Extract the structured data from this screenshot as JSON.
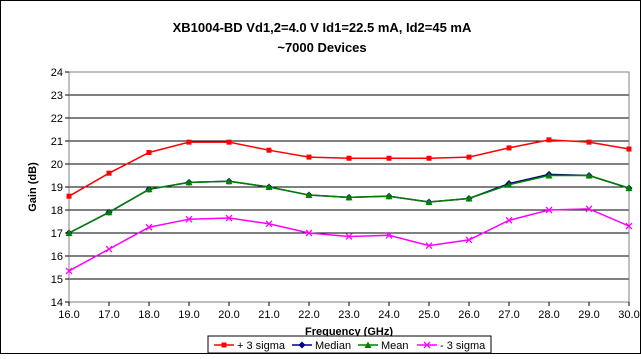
{
  "chart_data": {
    "type": "line",
    "title": "XB1004-BD Vd1,2=4.0 V Id1=22.5 mA, Id2=45 mA",
    "subtitle": "~7000 Devices",
    "xlabel": "Frequency (GHz)",
    "ylabel": "Gain (dB)",
    "x": [
      16.0,
      17.0,
      18.0,
      19.0,
      20.0,
      21.0,
      22.0,
      23.0,
      24.0,
      25.0,
      26.0,
      27.0,
      28.0,
      29.0,
      30.0
    ],
    "x_tick_labels": [
      "16.0",
      "17.0",
      "18.0",
      "19.0",
      "20.0",
      "21.0",
      "22.0",
      "23.0",
      "24.0",
      "25.0",
      "26.0",
      "27.0",
      "28.0",
      "29.0",
      "30.0"
    ],
    "y_ticks": [
      14,
      15,
      16,
      17,
      18,
      19,
      20,
      21,
      22,
      23,
      24
    ],
    "xlim": [
      16.0,
      30.0
    ],
    "ylim": [
      14,
      24
    ],
    "grid": "horizontal",
    "legend_position": "bottom",
    "series": [
      {
        "name": "+ 3 sigma",
        "color": "#ff0000",
        "marker": "square",
        "values": [
          18.6,
          19.6,
          20.5,
          20.95,
          20.95,
          20.6,
          20.3,
          20.25,
          20.25,
          20.25,
          20.3,
          20.7,
          21.05,
          20.95,
          20.65
        ]
      },
      {
        "name": "Median",
        "color": "#000080",
        "marker": "diamond",
        "values": [
          17.0,
          17.9,
          18.9,
          19.2,
          19.25,
          19.0,
          18.65,
          18.55,
          18.6,
          18.35,
          18.5,
          19.15,
          19.55,
          19.5,
          18.95
        ]
      },
      {
        "name": "Mean",
        "color": "#008000",
        "marker": "triangle",
        "values": [
          17.0,
          17.9,
          18.9,
          19.2,
          19.25,
          19.0,
          18.65,
          18.55,
          18.6,
          18.35,
          18.5,
          19.1,
          19.5,
          19.5,
          18.95
        ]
      },
      {
        "name": "- 3 sigma",
        "color": "#ff00ff",
        "marker": "x",
        "values": [
          15.35,
          16.3,
          17.25,
          17.6,
          17.65,
          17.4,
          17.0,
          16.85,
          16.9,
          16.45,
          16.7,
          17.55,
          18.0,
          18.05,
          17.3
        ]
      }
    ]
  }
}
